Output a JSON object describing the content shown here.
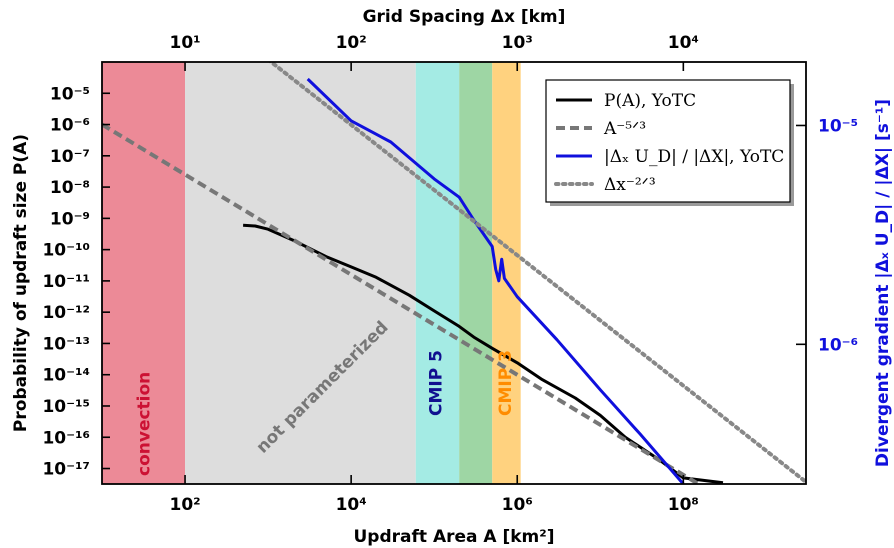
{
  "chart_data": {
    "type": "line",
    "x_axis": {
      "label": "Updraft Area A [km²]",
      "scale": "log",
      "range": [
        10,
        3000000000
      ],
      "ticks": [
        {
          "value": 100,
          "label": "10²"
        },
        {
          "value": 10000,
          "label": "10⁴"
        },
        {
          "value": 1000000,
          "label": "10⁶"
        },
        {
          "value": 100000000,
          "label": "10⁸"
        }
      ]
    },
    "top_axis": {
      "label": "Grid Spacing Δx [km]",
      "scale": "log",
      "ticks": [
        {
          "value": 10,
          "label": "10¹"
        },
        {
          "value": 100,
          "label": "10²"
        },
        {
          "value": 1000,
          "label": "10³"
        },
        {
          "value": 10000,
          "label": "10⁴"
        }
      ]
    },
    "y_axis": {
      "label": "Probability of updraft size P(A)",
      "scale": "log",
      "range": [
        3.2e-18,
        0.0001
      ],
      "ticks": [
        {
          "value": 1e-05,
          "label": "10⁻⁵"
        },
        {
          "value": 1e-06,
          "label": "10⁻⁶"
        },
        {
          "value": 1e-07,
          "label": "10⁻⁷"
        },
        {
          "value": 1e-08,
          "label": "10⁻⁸"
        },
        {
          "value": 1e-09,
          "label": "10⁻⁹"
        },
        {
          "value": 1e-10,
          "label": "10⁻¹⁰"
        },
        {
          "value": 1e-11,
          "label": "10⁻¹¹"
        },
        {
          "value": 1e-12,
          "label": "10⁻¹²"
        },
        {
          "value": 1e-13,
          "label": "10⁻¹³"
        },
        {
          "value": 1e-14,
          "label": "10⁻¹⁴"
        },
        {
          "value": 1e-15,
          "label": "10⁻¹⁵"
        },
        {
          "value": 1e-16,
          "label": "10⁻¹⁶"
        },
        {
          "value": 1e-17,
          "label": "10⁻¹⁷"
        }
      ]
    },
    "y2_axis": {
      "label": "Divergent gradient |Δₓ U_D| / |ΔX| [s⁻¹]",
      "scale": "log",
      "range": [
        2.3e-07,
        1.95e-05
      ],
      "color": "#1010dd",
      "ticks": [
        {
          "value": 1e-05,
          "label": "10⁻⁵"
        },
        {
          "value": 1e-06,
          "label": "10⁻⁶"
        }
      ]
    },
    "bands": [
      {
        "label": "convection",
        "x_range": [
          10,
          100
        ],
        "color": "#ec8a97",
        "text_color": "#cc1133"
      },
      {
        "label": "not parameterized",
        "x_range": [
          100,
          60000
        ],
        "color": "#dddddd",
        "text_color": "#777777"
      },
      {
        "label": "CMIP 5",
        "x_range": [
          60000,
          200000
        ],
        "color": "#a4ebe4",
        "text_color": "#101090"
      },
      {
        "label": "",
        "x_range": [
          200000,
          500000
        ],
        "color": "#9ed6a4",
        "text_color": ""
      },
      {
        "label": "CMIP 3",
        "x_range": [
          500000,
          1100000
        ],
        "color": "#ffd27f",
        "text_color": "#ff8c00"
      }
    ],
    "series": [
      {
        "name": "P(A), YoTC",
        "axis": "left",
        "color": "#000000",
        "style": "solid",
        "points": [
          [
            500,
            6e-10
          ],
          [
            700,
            5.7e-10
          ],
          [
            1000,
            4.5e-10
          ],
          [
            2000,
            2e-10
          ],
          [
            5000,
            6e-11
          ],
          [
            10000,
            2.8e-11
          ],
          [
            20000,
            1.3e-11
          ],
          [
            50000,
            3.5e-12
          ],
          [
            100000,
            1.1e-12
          ],
          [
            200000,
            3.5e-13
          ],
          [
            300000,
            1.6e-13
          ],
          [
            500000,
            7e-14
          ],
          [
            1000000,
            2.4e-14
          ],
          [
            2000000,
            7e-15
          ],
          [
            5000000,
            1.8e-15
          ],
          [
            10000000,
            5e-16
          ],
          [
            20000000,
            1e-16
          ],
          [
            50000000,
            2e-17
          ],
          [
            100000000,
            5e-18
          ],
          [
            300000000,
            3.5e-18
          ]
        ]
      },
      {
        "name": "A^-5/3",
        "axis": "left",
        "color": "#777777",
        "style": "dashed",
        "points": [
          [
            10,
            1e-06
          ],
          [
            3000000000,
            2.7e-20
          ]
        ]
      },
      {
        "name": "|Δₓ U_D| / |ΔX|, YoTC",
        "axis": "right",
        "color": "#1010dd",
        "style": "solid",
        "points": [
          [
            3000,
            1.63e-05
          ],
          [
            10000,
            1.05e-05
          ],
          [
            30000,
            8.4e-06
          ],
          [
            100000,
            5.7e-06
          ],
          [
            200000,
            4.7e-06
          ],
          [
            300000,
            3.7e-06
          ],
          [
            500000,
            2.8e-06
          ],
          [
            550000,
            2.2e-06
          ],
          [
            600000,
            1.95e-06
          ],
          [
            650000,
            2.45e-06
          ],
          [
            700000,
            2e-06
          ],
          [
            1000000,
            1.65e-06
          ],
          [
            3000000,
            1.05e-06
          ],
          [
            10000000,
            6.2e-07
          ],
          [
            30000000,
            3.9e-07
          ],
          [
            100000000,
            2.3e-07
          ]
        ]
      },
      {
        "name": "Δx^-2/3",
        "axis": "right",
        "color": "#888888",
        "style": "dotted",
        "points": [
          [
            1000,
            2e-05
          ],
          [
            3000000000,
            2.35e-07
          ]
        ]
      }
    ],
    "legend": {
      "position": "upper-right",
      "entries": [
        {
          "text": "P(A), YoTC",
          "color": "#000000",
          "style": "solid"
        },
        {
          "text": "A⁻⁵ᐟ³",
          "color": "#777777",
          "style": "dashed"
        },
        {
          "text": "|Δₓ U_D| / |ΔX|, YoTC",
          "color": "#1010dd",
          "style": "solid"
        },
        {
          "text": "Δx⁻²ᐟ³",
          "color": "#888888",
          "style": "dotted"
        }
      ]
    }
  }
}
